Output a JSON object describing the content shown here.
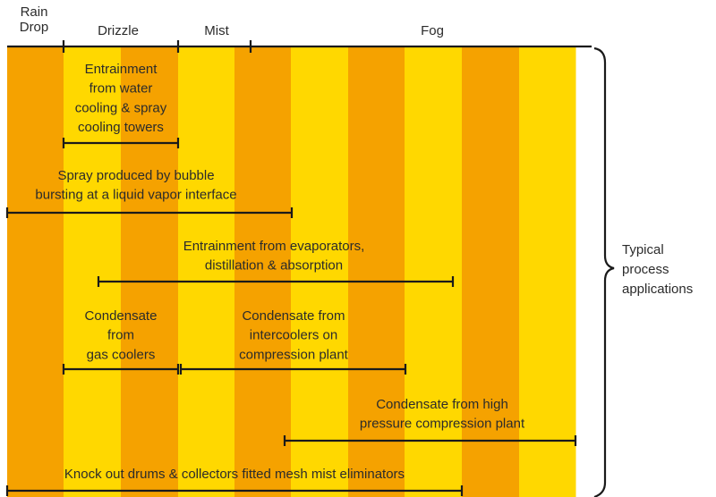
{
  "header": {
    "categories": [
      [
        "Rain",
        "Drop"
      ],
      [
        "Drizzle"
      ],
      [
        "Mist"
      ],
      [
        "Fog"
      ]
    ]
  },
  "applications": [
    [
      "Entrainment",
      "from water",
      "cooling & spray",
      "cooling towers"
    ],
    [
      "Spray produced by bubble",
      "bursting at a liquid vapor interface"
    ],
    [
      "Entrainment from evaporators,",
      "distillation & absorption"
    ],
    [
      "Condensate",
      "from",
      "gas coolers"
    ],
    [
      "Condensate from",
      "intercoolers on",
      "compression plant"
    ],
    [
      "Condensate from high",
      "pressure compression plant"
    ],
    [
      "Knock out drums & collectors fitted mesh mist eliminators"
    ]
  ],
  "side_label": [
    "Typical",
    "process",
    "applications"
  ]
}
